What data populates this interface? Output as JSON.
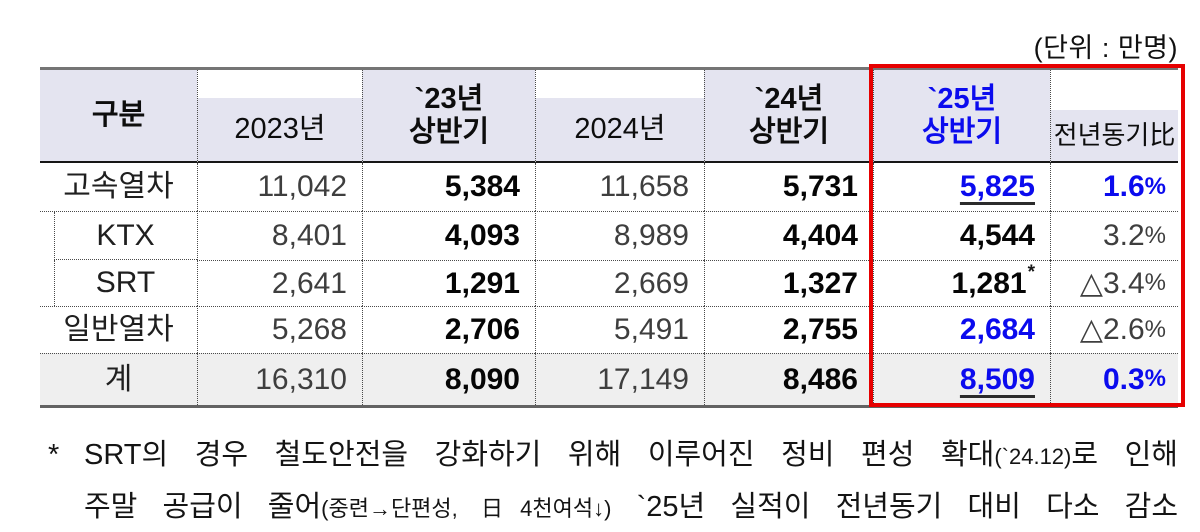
{
  "colors": {
    "accent_blue": "#0b0bee",
    "box_red": "#e60000",
    "header_bg": "#e4e4f0",
    "total_bg": "#efefef"
  },
  "unit_label": "(단위 : 만명)",
  "table": {
    "headers": {
      "category": "구분",
      "y2023": "2023년",
      "h23": {
        "l1": "`23년",
        "l2": "상반기"
      },
      "y2024": "2024년",
      "h24": {
        "l1": "`24년",
        "l2": "상반기"
      },
      "h25": {
        "l1": "`25년",
        "l2": "상반기"
      },
      "yoy": "전년동기比"
    },
    "rows": [
      {
        "label": "고속열차",
        "y2023": "11,042",
        "h23": "5,384",
        "y2024": "11,658",
        "h24": "5,731",
        "h25": "5,825",
        "yoy": "1.6%"
      },
      {
        "label": "KTX",
        "y2023": "8,401",
        "h23": "4,093",
        "y2024": "8,989",
        "h24": "4,404",
        "h25": "4,544",
        "yoy": "3.2%"
      },
      {
        "label": "SRT",
        "y2023": "2,641",
        "h23": "1,291",
        "y2024": "2,669",
        "h24": "1,327",
        "h25": "1,281",
        "h25_note": "*",
        "yoy": "△3.4%"
      },
      {
        "label": "일반열차",
        "y2023": "5,268",
        "h23": "2,706",
        "y2024": "5,491",
        "h24": "2,755",
        "h25": "2,684",
        "yoy": "△2.6%"
      },
      {
        "label": "계",
        "y2023": "16,310",
        "h23": "8,090",
        "y2024": "17,149",
        "h24": "8,486",
        "h25": "8,509",
        "yoy": "0.3%"
      }
    ]
  },
  "footnote": {
    "marker": "*",
    "line1": [
      "SRT의 경우 철도안전을 강화하기 위해 이루어진 정비 편성 확대",
      "(`24.12)",
      "로 인해"
    ],
    "line2": [
      "주말 공급이 줄어",
      "(중련→단편성, 日4천여석↓)",
      " `25년 실적이 전년동기 대비 다소 감소"
    ]
  }
}
